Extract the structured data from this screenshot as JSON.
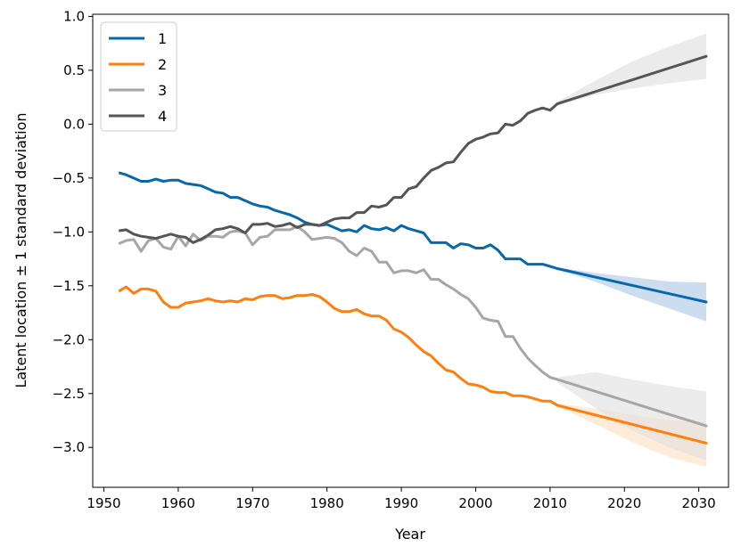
{
  "chart_data": {
    "type": "line",
    "title": "",
    "xlabel": "Year",
    "ylabel": "Latent location ± 1 standard deviation",
    "xlim": [
      1948.5,
      2034
    ],
    "ylim": [
      -3.37,
      1.02
    ],
    "xticks": [
      1950,
      1960,
      1970,
      1980,
      1990,
      2000,
      2010,
      2020,
      2030
    ],
    "xtick_labels": [
      "1950",
      "1960",
      "1970",
      "1980",
      "1990",
      "2000",
      "2010",
      "2020",
      "2030"
    ],
    "yticks": [
      1.0,
      0.5,
      0.0,
      -0.5,
      -1.0,
      -1.5,
      -2.0,
      -2.5,
      -3.0
    ],
    "ytick_labels": [
      "1.0",
      "0.5",
      "0.0",
      "−0.5",
      "−1.0",
      "−1.5",
      "−2.0",
      "−2.5",
      "−3.0"
    ],
    "grid": false,
    "legend_position": "top-left",
    "series": [
      {
        "name": "1",
        "color": "#0868ac",
        "band_color": "#aac6e6",
        "points": [
          [
            1952,
            -0.45
          ],
          [
            1953,
            -0.47
          ],
          [
            1954,
            -0.5
          ],
          [
            1955,
            -0.53
          ],
          [
            1956,
            -0.53
          ],
          [
            1957,
            -0.51
          ],
          [
            1958,
            -0.53
          ],
          [
            1959,
            -0.52
          ],
          [
            1960,
            -0.52
          ],
          [
            1961,
            -0.55
          ],
          [
            1962,
            -0.56
          ],
          [
            1963,
            -0.57
          ],
          [
            1964,
            -0.6
          ],
          [
            1965,
            -0.63
          ],
          [
            1966,
            -0.64
          ],
          [
            1967,
            -0.68
          ],
          [
            1968,
            -0.68
          ],
          [
            1969,
            -0.71
          ],
          [
            1970,
            -0.74
          ],
          [
            1971,
            -0.76
          ],
          [
            1972,
            -0.77
          ],
          [
            1973,
            -0.8
          ],
          [
            1974,
            -0.82
          ],
          [
            1975,
            -0.84
          ],
          [
            1976,
            -0.87
          ],
          [
            1977,
            -0.91
          ],
          [
            1978,
            -0.93
          ],
          [
            1979,
            -0.94
          ],
          [
            1980,
            -0.93
          ],
          [
            1981,
            -0.96
          ],
          [
            1982,
            -0.99
          ],
          [
            1983,
            -0.98
          ],
          [
            1984,
            -1.0
          ],
          [
            1985,
            -0.94
          ],
          [
            1986,
            -0.97
          ],
          [
            1987,
            -0.98
          ],
          [
            1988,
            -0.96
          ],
          [
            1989,
            -0.99
          ],
          [
            1990,
            -0.94
          ],
          [
            1991,
            -0.97
          ],
          [
            1992,
            -0.99
          ],
          [
            1993,
            -1.01
          ],
          [
            1994,
            -1.1
          ],
          [
            1995,
            -1.1
          ],
          [
            1996,
            -1.1
          ],
          [
            1997,
            -1.15
          ],
          [
            1998,
            -1.11
          ],
          [
            1999,
            -1.12
          ],
          [
            2000,
            -1.15
          ],
          [
            2001,
            -1.15
          ],
          [
            2002,
            -1.12
          ],
          [
            2003,
            -1.17
          ],
          [
            2004,
            -1.25
          ],
          [
            2005,
            -1.25
          ],
          [
            2006,
            -1.25
          ],
          [
            2007,
            -1.3
          ],
          [
            2008,
            -1.3
          ],
          [
            2009,
            -1.3
          ],
          [
            2010,
            -1.32
          ],
          [
            2011,
            -1.34
          ]
        ],
        "forecast": [
          [
            2011,
            -1.34
          ],
          [
            2031,
            -1.65
          ]
        ],
        "band_upper": [
          [
            2011,
            -1.33
          ],
          [
            2016,
            -1.38
          ],
          [
            2021,
            -1.42
          ],
          [
            2026,
            -1.46
          ],
          [
            2031,
            -1.47
          ]
        ],
        "band_lower": [
          [
            2011,
            -1.35
          ],
          [
            2016,
            -1.46
          ],
          [
            2021,
            -1.59
          ],
          [
            2026,
            -1.71
          ],
          [
            2031,
            -1.83
          ]
        ]
      },
      {
        "name": "2",
        "color": "#ff7f0e",
        "band_color": "#fde0c2",
        "points": [
          [
            1952,
            -1.55
          ],
          [
            1953,
            -1.51
          ],
          [
            1954,
            -1.57
          ],
          [
            1955,
            -1.53
          ],
          [
            1956,
            -1.53
          ],
          [
            1957,
            -1.55
          ],
          [
            1958,
            -1.65
          ],
          [
            1959,
            -1.7
          ],
          [
            1960,
            -1.7
          ],
          [
            1961,
            -1.66
          ],
          [
            1962,
            -1.65
          ],
          [
            1963,
            -1.64
          ],
          [
            1964,
            -1.62
          ],
          [
            1965,
            -1.64
          ],
          [
            1966,
            -1.65
          ],
          [
            1967,
            -1.64
          ],
          [
            1968,
            -1.65
          ],
          [
            1969,
            -1.62
          ],
          [
            1970,
            -1.63
          ],
          [
            1971,
            -1.6
          ],
          [
            1972,
            -1.59
          ],
          [
            1973,
            -1.59
          ],
          [
            1974,
            -1.62
          ],
          [
            1975,
            -1.61
          ],
          [
            1976,
            -1.59
          ],
          [
            1977,
            -1.59
          ],
          [
            1978,
            -1.58
          ],
          [
            1979,
            -1.6
          ],
          [
            1980,
            -1.65
          ],
          [
            1981,
            -1.71
          ],
          [
            1982,
            -1.74
          ],
          [
            1983,
            -1.74
          ],
          [
            1984,
            -1.72
          ],
          [
            1985,
            -1.76
          ],
          [
            1986,
            -1.78
          ],
          [
            1987,
            -1.78
          ],
          [
            1988,
            -1.82
          ],
          [
            1989,
            -1.9
          ],
          [
            1990,
            -1.93
          ],
          [
            1991,
            -1.98
          ],
          [
            1992,
            -2.05
          ],
          [
            1993,
            -2.11
          ],
          [
            1994,
            -2.15
          ],
          [
            1995,
            -2.22
          ],
          [
            1996,
            -2.28
          ],
          [
            1997,
            -2.3
          ],
          [
            1998,
            -2.36
          ],
          [
            1999,
            -2.41
          ],
          [
            2000,
            -2.42
          ],
          [
            2001,
            -2.44
          ],
          [
            2002,
            -2.48
          ],
          [
            2003,
            -2.49
          ],
          [
            2004,
            -2.49
          ],
          [
            2005,
            -2.52
          ],
          [
            2006,
            -2.52
          ],
          [
            2007,
            -2.53
          ],
          [
            2008,
            -2.55
          ],
          [
            2009,
            -2.57
          ],
          [
            2010,
            -2.57
          ],
          [
            2011,
            -2.61
          ]
        ],
        "forecast": [
          [
            2011,
            -2.61
          ],
          [
            2031,
            -2.96
          ]
        ],
        "band_upper": [
          [
            2011,
            -2.59
          ],
          [
            2016,
            -2.64
          ],
          [
            2021,
            -2.7
          ],
          [
            2026,
            -2.75
          ],
          [
            2031,
            -2.76
          ]
        ],
        "band_lower": [
          [
            2011,
            -2.62
          ],
          [
            2016,
            -2.78
          ],
          [
            2021,
            -2.95
          ],
          [
            2026,
            -3.09
          ],
          [
            2031,
            -3.18
          ]
        ]
      },
      {
        "name": "3",
        "color": "#a6a6a6",
        "band_color": "#e0e0e0",
        "points": [
          [
            1952,
            -1.11
          ],
          [
            1953,
            -1.08
          ],
          [
            1954,
            -1.07
          ],
          [
            1955,
            -1.18
          ],
          [
            1956,
            -1.08
          ],
          [
            1957,
            -1.06
          ],
          [
            1958,
            -1.14
          ],
          [
            1959,
            -1.16
          ],
          [
            1960,
            -1.04
          ],
          [
            1961,
            -1.13
          ],
          [
            1962,
            -1.02
          ],
          [
            1963,
            -1.08
          ],
          [
            1964,
            -1.04
          ],
          [
            1965,
            -1.04
          ],
          [
            1966,
            -1.05
          ],
          [
            1967,
            -1.0
          ],
          [
            1968,
            -0.99
          ],
          [
            1969,
            -1.01
          ],
          [
            1970,
            -1.12
          ],
          [
            1971,
            -1.05
          ],
          [
            1972,
            -1.04
          ],
          [
            1973,
            -0.98
          ],
          [
            1974,
            -0.98
          ],
          [
            1975,
            -0.98
          ],
          [
            1976,
            -0.95
          ],
          [
            1977,
            -1.0
          ],
          [
            1978,
            -1.07
          ],
          [
            1979,
            -1.06
          ],
          [
            1980,
            -1.05
          ],
          [
            1981,
            -1.06
          ],
          [
            1982,
            -1.1
          ],
          [
            1983,
            -1.18
          ],
          [
            1984,
            -1.22
          ],
          [
            1985,
            -1.15
          ],
          [
            1986,
            -1.18
          ],
          [
            1987,
            -1.28
          ],
          [
            1988,
            -1.28
          ],
          [
            1989,
            -1.38
          ],
          [
            1990,
            -1.36
          ],
          [
            1991,
            -1.36
          ],
          [
            1992,
            -1.38
          ],
          [
            1993,
            -1.35
          ],
          [
            1994,
            -1.44
          ],
          [
            1995,
            -1.44
          ],
          [
            1996,
            -1.49
          ],
          [
            1997,
            -1.53
          ],
          [
            1998,
            -1.58
          ],
          [
            1999,
            -1.62
          ],
          [
            2000,
            -1.7
          ],
          [
            2001,
            -1.8
          ],
          [
            2002,
            -1.82
          ],
          [
            2003,
            -1.83
          ],
          [
            2004,
            -1.97
          ],
          [
            2005,
            -1.97
          ],
          [
            2006,
            -2.08
          ],
          [
            2007,
            -2.17
          ],
          [
            2008,
            -2.24
          ],
          [
            2009,
            -2.3
          ],
          [
            2010,
            -2.35
          ],
          [
            2011,
            -2.37
          ]
        ],
        "forecast": [
          [
            2011,
            -2.37
          ],
          [
            2031,
            -2.8
          ]
        ],
        "band_upper": [
          [
            2011,
            -2.35
          ],
          [
            2016,
            -2.3
          ],
          [
            2021,
            -2.37
          ],
          [
            2026,
            -2.43
          ],
          [
            2031,
            -2.48
          ]
        ],
        "band_lower": [
          [
            2011,
            -2.4
          ],
          [
            2016,
            -2.63
          ],
          [
            2021,
            -2.84
          ],
          [
            2026,
            -3.0
          ],
          [
            2031,
            -3.12
          ]
        ]
      },
      {
        "name": "4",
        "color": "#555555",
        "band_color": "#dedede",
        "points": [
          [
            1952,
            -0.99
          ],
          [
            1953,
            -0.98
          ],
          [
            1954,
            -1.02
          ],
          [
            1955,
            -1.04
          ],
          [
            1956,
            -1.05
          ],
          [
            1957,
            -1.06
          ],
          [
            1958,
            -1.04
          ],
          [
            1959,
            -1.02
          ],
          [
            1960,
            -1.04
          ],
          [
            1961,
            -1.05
          ],
          [
            1962,
            -1.1
          ],
          [
            1963,
            -1.07
          ],
          [
            1964,
            -1.03
          ],
          [
            1965,
            -0.98
          ],
          [
            1966,
            -0.97
          ],
          [
            1967,
            -0.95
          ],
          [
            1968,
            -0.97
          ],
          [
            1969,
            -1.01
          ],
          [
            1970,
            -0.93
          ],
          [
            1971,
            -0.93
          ],
          [
            1972,
            -0.92
          ],
          [
            1973,
            -0.95
          ],
          [
            1974,
            -0.94
          ],
          [
            1975,
            -0.92
          ],
          [
            1976,
            -0.96
          ],
          [
            1977,
            -0.93
          ],
          [
            1978,
            -0.93
          ],
          [
            1979,
            -0.94
          ],
          [
            1980,
            -0.91
          ],
          [
            1981,
            -0.88
          ],
          [
            1982,
            -0.87
          ],
          [
            1983,
            -0.87
          ],
          [
            1984,
            -0.82
          ],
          [
            1985,
            -0.82
          ],
          [
            1986,
            -0.76
          ],
          [
            1987,
            -0.77
          ],
          [
            1988,
            -0.75
          ],
          [
            1989,
            -0.68
          ],
          [
            1990,
            -0.68
          ],
          [
            1991,
            -0.6
          ],
          [
            1992,
            -0.58
          ],
          [
            1993,
            -0.5
          ],
          [
            1994,
            -0.43
          ],
          [
            1995,
            -0.4
          ],
          [
            1996,
            -0.36
          ],
          [
            1997,
            -0.35
          ],
          [
            1998,
            -0.26
          ],
          [
            1999,
            -0.18
          ],
          [
            2000,
            -0.14
          ],
          [
            2001,
            -0.12
          ],
          [
            2002,
            -0.09
          ],
          [
            2003,
            -0.08
          ],
          [
            2004,
            0.0
          ],
          [
            2005,
            -0.01
          ],
          [
            2006,
            0.03
          ],
          [
            2007,
            0.1
          ],
          [
            2008,
            0.13
          ],
          [
            2009,
            0.15
          ],
          [
            2010,
            0.13
          ],
          [
            2011,
            0.19
          ]
        ],
        "forecast": [
          [
            2011,
            0.19
          ],
          [
            2031,
            0.63
          ]
        ],
        "band_upper": [
          [
            2011,
            0.21
          ],
          [
            2016,
            0.4
          ],
          [
            2021,
            0.58
          ],
          [
            2026,
            0.72
          ],
          [
            2031,
            0.84
          ]
        ],
        "band_lower": [
          [
            2011,
            0.17
          ],
          [
            2016,
            0.27
          ],
          [
            2021,
            0.33
          ],
          [
            2026,
            0.38
          ],
          [
            2031,
            0.42
          ]
        ]
      }
    ]
  }
}
